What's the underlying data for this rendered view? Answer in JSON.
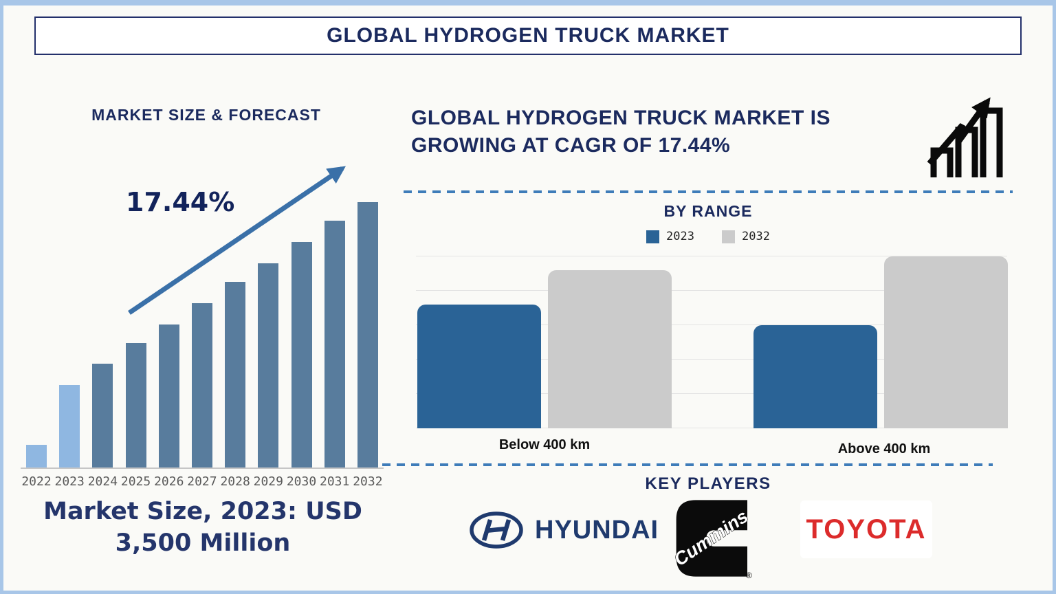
{
  "title": "GLOBAL HYDROGEN TRUCK MARKET",
  "left_section": {
    "heading": "MARKET SIZE & FORECAST",
    "growth_annotation": "17.44%",
    "caption": "Market Size, 2023: USD 3,500 Million"
  },
  "right_section": {
    "heading_line1": "GLOBAL HYDROGEN TRUCK MARKET IS",
    "heading_line2": "GROWING AT CAGR OF 17.44%",
    "by_range_title": "BY RANGE",
    "key_players_title": "KEY PLAYERS",
    "key_players": [
      "HYUNDAI",
      "Cummins",
      "TOYOTA"
    ]
  },
  "logos": {
    "hyundai_word": "HYUNDAI",
    "cummins_word": "Cummins",
    "cummins_reg_mark": "®",
    "toyota_word": "TOYOTA"
  },
  "chart_data": [
    {
      "id": "market_size_forecast",
      "type": "bar",
      "title": "MARKET SIZE & FORECAST",
      "categories": [
        "2022",
        "2023",
        "2024",
        "2025",
        "2026",
        "2027",
        "2028",
        "2029",
        "2030",
        "2031",
        "2032"
      ],
      "values": [
        8.5,
        31,
        39,
        47,
        54,
        62,
        70,
        77,
        85,
        93,
        100
      ],
      "value_note": "no y-axis shown; bar heights estimated relative to 2032 bar = 100",
      "highlighted_categories": [
        "2022",
        "2023"
      ],
      "annotation": "17.44%",
      "known_point": "Market Size, 2023: USD 3,500 Million",
      "xlabel": "",
      "ylabel": "",
      "grid": false,
      "colors": {
        "bar": "#587C9D",
        "highlight": "#8FB7E1",
        "arrow": "#3A70A8"
      }
    },
    {
      "id": "by_range",
      "type": "bar",
      "title": "BY RANGE",
      "categories": [
        "Below 400 km",
        "Above 400 km"
      ],
      "series": [
        {
          "name": "2023",
          "color": "#2A6396",
          "values": [
            72,
            60
          ]
        },
        {
          "name": "2032",
          "color": "#CBCBCB",
          "values": [
            92,
            100
          ]
        }
      ],
      "ylim": [
        0,
        100
      ],
      "value_note": "no y-axis labels; values estimated relative to tallest bar = 100",
      "grid": true,
      "legend_position": "top"
    }
  ],
  "colors": {
    "navy_text": "#1B2A5E",
    "frame_border": "#A8C6E8",
    "dashed_line": "#3E7CB9",
    "axis_line": "#C6C6C6",
    "year_label": "#595959",
    "hyundai_navy": "#1F3A6E",
    "toyota_red": "#DC2B2B"
  }
}
